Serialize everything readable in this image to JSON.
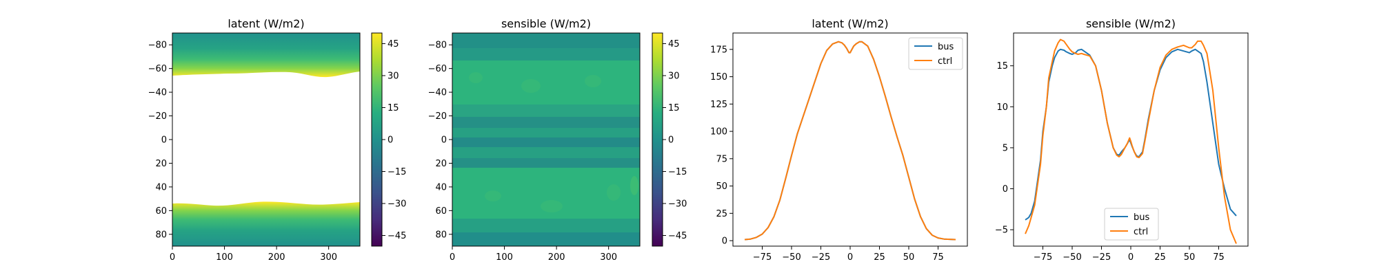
{
  "figure": {
    "background": "#ffffff"
  },
  "colors": {
    "bus": "#1f77b4",
    "ctrl": "#ff7f0e"
  },
  "colormap": "viridis",
  "chart_data": [
    {
      "type": "heatmap",
      "title": "latent (W/m2)",
      "xlim": [
        0,
        360
      ],
      "ylim": [
        90,
        -90
      ],
      "xticks": [
        "0",
        "100",
        "200",
        "300"
      ],
      "yticks": [
        "−80",
        "−60",
        "−40",
        "−20",
        "0",
        "20",
        "40",
        "60",
        "80"
      ],
      "colorbar": {
        "min": -50,
        "max": 50,
        "ticks": [
          "45",
          "30",
          "15",
          "0",
          "−15",
          "−30",
          "−45"
        ]
      },
      "description_values": {
        "north_band": {
          "lat_range": [
            -90,
            -50
          ],
          "value_range": [
            10,
            50
          ]
        },
        "south_band": {
          "lat_range": [
            50,
            90
          ],
          "value_range": [
            10,
            50
          ]
        },
        "middle_masked": {
          "lat_range": [
            -50,
            50
          ]
        }
      }
    },
    {
      "type": "heatmap",
      "title": "sensible (W/m2)",
      "xlim": [
        0,
        360
      ],
      "ylim": [
        90,
        -90
      ],
      "xticks": [
        "0",
        "100",
        "200",
        "300"
      ],
      "yticks": [
        "−80",
        "−60",
        "−40",
        "−20",
        "0",
        "20",
        "40",
        "60",
        "80"
      ],
      "colorbar": {
        "min": -50,
        "max": 50,
        "ticks": [
          "45",
          "30",
          "15",
          "0",
          "−15",
          "−30",
          "−45"
        ]
      },
      "value_range": [
        0,
        20
      ]
    },
    {
      "type": "line",
      "title": "latent (W/m2)",
      "xlim": [
        -100,
        100
      ],
      "ylim": [
        -5,
        190
      ],
      "xticks": [
        "−75",
        "−50",
        "−25",
        "0",
        "25",
        "50",
        "75"
      ],
      "yticks": [
        "0",
        "25",
        "50",
        "75",
        "100",
        "125",
        "150",
        "175"
      ],
      "legend": "upper right",
      "x": [
        -90,
        -85,
        -80,
        -75,
        -70,
        -65,
        -60,
        -55,
        -50,
        -45,
        -40,
        -35,
        -30,
        -25,
        -20,
        -15,
        -10,
        -7,
        -5,
        -3,
        -1,
        0,
        1,
        3,
        5,
        8,
        10,
        15,
        20,
        25,
        30,
        35,
        40,
        45,
        50,
        55,
        60,
        65,
        70,
        75,
        80,
        85,
        90
      ],
      "series": [
        {
          "name": "bus",
          "values": [
            1,
            1.5,
            3,
            6,
            12,
            22,
            37,
            57,
            78,
            98,
            114,
            130,
            146,
            162,
            174,
            180,
            182,
            181,
            179,
            176,
            172,
            172,
            174,
            178,
            180,
            182,
            182,
            178,
            166,
            150,
            132,
            113,
            95,
            78,
            58,
            38,
            22,
            11,
            5,
            2.5,
            1.5,
            1.2,
            1
          ]
        },
        {
          "name": "ctrl",
          "values": [
            1,
            1.5,
            3,
            6,
            12,
            22,
            37,
            57,
            78,
            98,
            114,
            130,
            146,
            162,
            174,
            180,
            182,
            181,
            179,
            176,
            172,
            172,
            174,
            178,
            180,
            182,
            182,
            178,
            166,
            150,
            132,
            113,
            95,
            78,
            58,
            38,
            22,
            11,
            5,
            2.5,
            1.5,
            1.2,
            1
          ]
        }
      ]
    },
    {
      "type": "line",
      "title": "sensible (W/m2)",
      "xlim": [
        -100,
        100
      ],
      "ylim": [
        -7,
        19
      ],
      "xticks": [
        "−75",
        "−50",
        "−25",
        "0",
        "25",
        "50",
        "75"
      ],
      "yticks": [
        "−5",
        "0",
        "5",
        "10",
        "15"
      ],
      "legend": "lower center",
      "x": [
        -90,
        -87,
        -85,
        -82,
        -80,
        -77,
        -75,
        -72,
        -70,
        -67,
        -65,
        -62,
        -60,
        -57,
        -55,
        -52,
        -50,
        -47,
        -45,
        -42,
        -40,
        -35,
        -30,
        -25,
        -20,
        -15,
        -12,
        -10,
        -8,
        -5,
        -3,
        -1,
        0,
        1,
        3,
        5,
        7,
        10,
        12,
        15,
        20,
        25,
        30,
        35,
        40,
        45,
        50,
        52,
        55,
        57,
        60,
        62,
        65,
        70,
        75,
        80,
        85,
        90
      ],
      "series": [
        {
          "name": "bus",
          "values": [
            -3.8,
            -3.5,
            -3,
            -1.5,
            0.5,
            3.5,
            7,
            10,
            13,
            15,
            16,
            16.8,
            17,
            16.9,
            16.7,
            16.5,
            16.4,
            16.6,
            16.9,
            17,
            16.8,
            16.3,
            15,
            12,
            8,
            5,
            4.2,
            4.1,
            4.5,
            5,
            5.5,
            6,
            5.6,
            5.2,
            4.5,
            4,
            3.9,
            4.5,
            6,
            8.5,
            12,
            14.5,
            16,
            16.7,
            17,
            16.8,
            16.6,
            16.8,
            17,
            16.8,
            16.5,
            15.5,
            13,
            8,
            3,
            0,
            -2.5,
            -3.3
          ]
        },
        {
          "name": "ctrl",
          "values": [
            -5.5,
            -4.5,
            -3.5,
            -2,
            0,
            3,
            6.5,
            10,
            13.5,
            15.5,
            16.8,
            17.8,
            18.2,
            18,
            17.6,
            17,
            16.7,
            16.5,
            16.4,
            16.5,
            16.4,
            16.2,
            15,
            12,
            8,
            5,
            4.1,
            3.9,
            4.2,
            5,
            5.5,
            6.2,
            5.8,
            5.3,
            4.5,
            3.9,
            3.8,
            4.3,
            5.8,
            8.2,
            12,
            14.8,
            16.3,
            17,
            17.3,
            17.5,
            17.2,
            17.2,
            17.6,
            18,
            18,
            17.5,
            16.5,
            12,
            5,
            -1,
            -5,
            -6.7
          ]
        }
      ]
    }
  ]
}
